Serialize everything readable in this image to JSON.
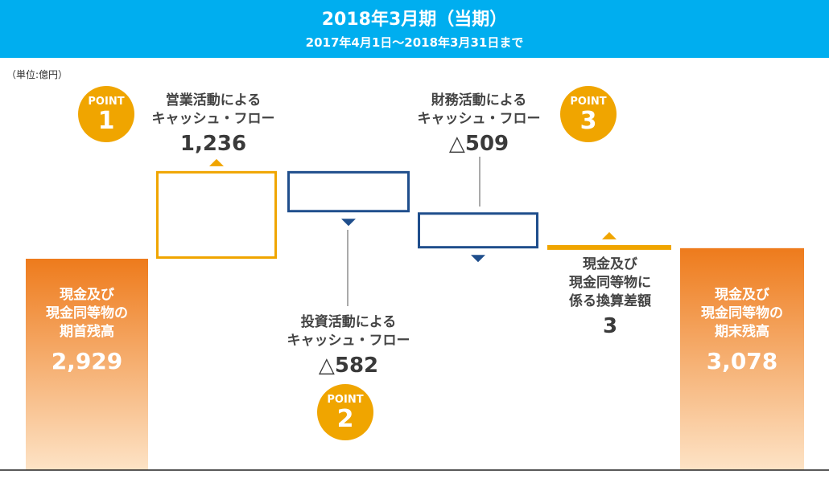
{
  "header": {
    "title": "2018年3月期（当期）",
    "subtitle": "2017年4月1日〜2018年3月31日まで"
  },
  "unit_label": "（単位:億円）",
  "labels": {
    "opening_t1": "現金及び",
    "opening_t2": "現金同等物の",
    "opening_t3": "期首残高",
    "opening_v": "2,929",
    "operating_t1": "営業活動による",
    "operating_t2": "キャッシュ・フロー",
    "operating_v": "1,236",
    "investing_t1": "投資活動による",
    "investing_t2": "キャッシュ・フロー",
    "investing_v": "△582",
    "financing_t1": "財務活動による",
    "financing_t2": "キャッシュ・フロー",
    "financing_v": "△509",
    "fx_t1": "現金及び",
    "fx_t2": "現金同等物に",
    "fx_t3": "係る換算差額",
    "fx_v": "3",
    "closing_t1": "現金及び",
    "closing_t2": "現金同等物の",
    "closing_t3": "期末残高",
    "closing_v": "3,078"
  },
  "points": {
    "word": "POINT",
    "p1": "1",
    "p2": "2",
    "p3": "3"
  },
  "colors": {
    "header": "#00AEEF",
    "increase": "#F0A500",
    "decrease": "#1F4E8C",
    "total_top": "#EE7B1C",
    "total_bottom": "#FDE3C6",
    "point": "#F0A500"
  },
  "chart_data": {
    "type": "waterfall",
    "unit": "億円",
    "categories": [
      "期首残高",
      "営業活動によるキャッシュ・フロー",
      "投資活動によるキャッシュ・フロー",
      "財務活動によるキャッシュ・フロー",
      "現金及び現金同等物に係る換算差額",
      "期末残高"
    ],
    "values": [
      2929,
      1236,
      -582,
      -509,
      3,
      3078
    ],
    "kinds": [
      "total",
      "increase",
      "decrease",
      "decrease",
      "increase",
      "total"
    ]
  }
}
